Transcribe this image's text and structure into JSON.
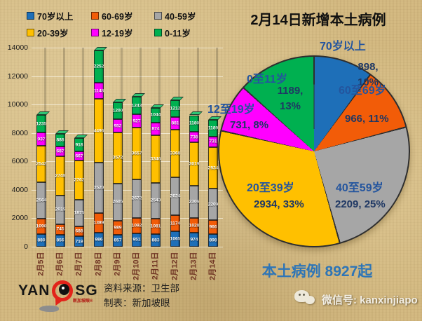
{
  "chart_data": [
    {
      "type": "bar",
      "stacked": true,
      "categories": [
        "2月5日",
        "2月6日",
        "2月7日",
        "2月8日",
        "2月9日",
        "2月10日",
        "2月11日",
        "2月12日",
        "2月13日",
        "2月14日"
      ],
      "series": [
        {
          "name": "70岁以上",
          "color": "#1e6fb8",
          "values": [
            880,
            856,
            719,
            986,
            857,
            951,
            883,
            1065,
            974,
            898
          ]
        },
        {
          "name": "60-69岁",
          "color": "#f25c08",
          "values": [
            1090,
            745,
            688,
            1389,
            989,
            1092,
            1081,
            1174,
            1028,
            966
          ]
        },
        {
          "name": "40-59岁",
          "color": "#a6a6a6",
          "values": [
            2564,
            2015,
            1875,
            3520,
            2605,
            2672,
            2543,
            2624,
            2306,
            2209
          ]
        },
        {
          "name": "20-39岁",
          "color": "#ffc000",
          "values": [
            2542,
            2748,
            2762,
            4496,
            3572,
            3657,
            3346,
            3368,
            3019,
            2934
          ]
        },
        {
          "name": "12-19岁",
          "color": "#ff00ff",
          "values": [
            937,
            687,
            667,
            1148,
            952,
            927,
            874,
            881,
            738,
            731
          ]
        },
        {
          "name": "0-11岁",
          "color": "#00b050",
          "values": [
            1235,
            888,
            918,
            2252,
            1200,
            1243,
            1044,
            1212,
            1180,
            1189
          ]
        }
      ],
      "ylim": [
        0,
        14000
      ],
      "yticks": [
        "0",
        "2000",
        "4000",
        "6000",
        "8000",
        "10000",
        "12000",
        "14000"
      ],
      "grid": true,
      "legend_position": "top"
    },
    {
      "type": "pie",
      "title": "2月14日新增本土病例",
      "start_angle_deg": 0,
      "direction": "clockwise",
      "slices": [
        {
          "label": "70岁以上",
          "value": 898,
          "pct": "10%",
          "display": "898, 10%",
          "color": "#1e6fb8"
        },
        {
          "label": "60至69岁",
          "value": 966,
          "pct": "11%",
          "display": "966, 11%",
          "color": "#f25c08"
        },
        {
          "label": "40至59岁",
          "value": 2209,
          "pct": "25%",
          "display": "2209, 25%",
          "color": "#a6a6a6"
        },
        {
          "label": "20至39岁",
          "value": 2934,
          "pct": "33%",
          "display": "2934, 33%",
          "color": "#ffc000"
        },
        {
          "label": "12至19岁",
          "value": 731,
          "pct": "8%",
          "display": "731, 8%",
          "color": "#ff00ff"
        },
        {
          "label": "0至11岁",
          "value": 1189,
          "pct": "13%",
          "display": "1189, 13%",
          "color": "#00b050"
        }
      ],
      "total_label": "本土病例 8927起"
    }
  ],
  "footer": {
    "logo_left": "YAN",
    "logo_right": "SG",
    "logo_caption": "新加坡眼®",
    "source_line1": "资料来源：卫生部",
    "source_line2": "制表：新加坡眼",
    "wechat_label": "微信号: kanxinjiapo"
  },
  "colors": {
    "accent_blue_text": "#24559e",
    "value_navy_text": "#1f3864",
    "total_blue_text": "#2e75b6",
    "date_label_brown": "#6f3423",
    "logo_red": "#e2231a"
  }
}
